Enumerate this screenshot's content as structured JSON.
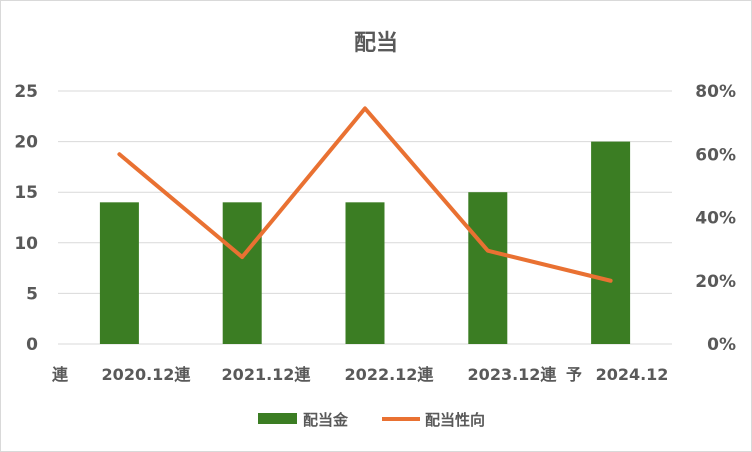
{
  "chart_data": {
    "type": "bar+line",
    "title": "配当",
    "categories": [
      "連　2020.12",
      "連　2021.12",
      "連　2022.12",
      "連　2023.12",
      "連 予 2024.12"
    ],
    "category_labels": [
      "連",
      "2020.12連",
      "2021.12連",
      "2022.12連",
      "2023.12連",
      "予",
      "2024.12"
    ],
    "series": [
      {
        "name": "配当金",
        "type": "bar",
        "axis": "left",
        "values": [
          14,
          14,
          14,
          15,
          20
        ],
        "color": "#3b7d23"
      },
      {
        "name": "配当性向",
        "type": "line",
        "axis": "right",
        "values": [
          60,
          27.5,
          74.5,
          29.5,
          20
        ],
        "color": "#e97132"
      }
    ],
    "y_left": {
      "min": 0,
      "max": 25,
      "ticks": [
        "0",
        "5",
        "10",
        "15",
        "20",
        "25"
      ]
    },
    "y_right": {
      "min": 0,
      "max": 80,
      "ticks": [
        "0%",
        "20%",
        "40%",
        "60%",
        "80%"
      ]
    },
    "grid": true,
    "legend": "bottom"
  }
}
